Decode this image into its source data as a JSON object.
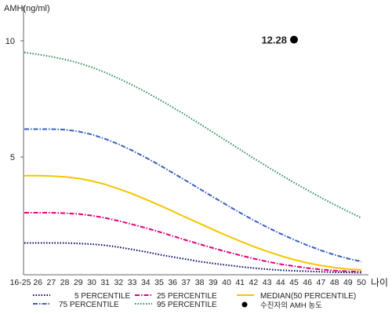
{
  "chart_data": {
    "type": "line",
    "ylabel": "AMH(ng/ml)",
    "xlabel": "나이",
    "yticks": [
      5,
      10
    ],
    "ylim": [
      0,
      11
    ],
    "x_tick_labels": [
      "16-25",
      "26",
      "27",
      "28",
      "29",
      "30",
      "31",
      "32",
      "33",
      "34",
      "35",
      "36",
      "37",
      "38",
      "39",
      "40",
      "41",
      "42",
      "43",
      "44",
      "45",
      "46",
      "47",
      "48",
      "49",
      "50"
    ],
    "series": [
      {
        "name": "5 PERCENTILE",
        "color": "#000066",
        "style": "dotted",
        "values": [
          1.3,
          1.3,
          1.3,
          1.3,
          1.28,
          1.25,
          1.2,
          1.12,
          1.02,
          0.92,
          0.8,
          0.7,
          0.6,
          0.5,
          0.42,
          0.35,
          0.28,
          0.22,
          0.17,
          0.13,
          0.1,
          0.08,
          0.06,
          0.04,
          0.03,
          0.02
        ]
      },
      {
        "name": "25 PERCENTILE",
        "color": "#e0007a",
        "style": "dashdot",
        "values": [
          2.6,
          2.6,
          2.6,
          2.58,
          2.55,
          2.48,
          2.38,
          2.25,
          2.1,
          1.95,
          1.78,
          1.6,
          1.42,
          1.25,
          1.08,
          0.92,
          0.77,
          0.63,
          0.5,
          0.39,
          0.3,
          0.22,
          0.16,
          0.11,
          0.08,
          0.06
        ]
      },
      {
        "name": "MEDIAN(50 PERCENTILE)",
        "color": "#f5c400",
        "style": "solid",
        "values": [
          4.2,
          4.2,
          4.18,
          4.15,
          4.08,
          3.97,
          3.82,
          3.63,
          3.42,
          3.18,
          2.93,
          2.67,
          2.4,
          2.14,
          1.88,
          1.62,
          1.38,
          1.15,
          0.94,
          0.75,
          0.58,
          0.44,
          0.33,
          0.24,
          0.18,
          0.14
        ]
      },
      {
        "name": "75 PERCENTILE",
        "color": "#3a5fbf",
        "style": "dashdot",
        "values": [
          6.2,
          6.2,
          6.2,
          6.18,
          6.1,
          5.97,
          5.78,
          5.55,
          5.28,
          4.98,
          4.66,
          4.32,
          3.98,
          3.63,
          3.28,
          2.94,
          2.6,
          2.28,
          1.98,
          1.7,
          1.44,
          1.2,
          0.98,
          0.79,
          0.63,
          0.5
        ]
      },
      {
        "name": "95 PERCENTILE",
        "color": "#2e8b57",
        "style": "dotted",
        "values": [
          9.5,
          9.42,
          9.32,
          9.2,
          9.05,
          8.86,
          8.64,
          8.38,
          8.1,
          7.8,
          7.48,
          7.14,
          6.79,
          6.43,
          6.06,
          5.69,
          5.32,
          4.95,
          4.59,
          4.24,
          3.9,
          3.57,
          3.25,
          2.95,
          2.66,
          2.38
        ]
      }
    ],
    "marker": {
      "name": "수진자의 AMH 농도",
      "label": "12.28",
      "x_index": 20,
      "display_y": 10.05,
      "color": "#000000"
    },
    "legend_position": "bottom"
  }
}
